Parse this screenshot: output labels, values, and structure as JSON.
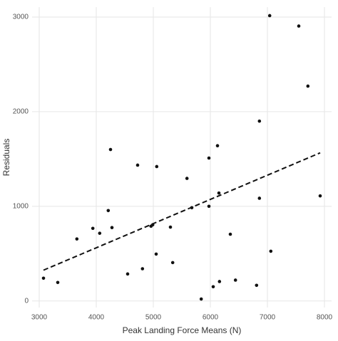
{
  "chart_data": {
    "type": "scatter",
    "x_label": "Peak Landing Force Means (N)",
    "y_label": "Residuals",
    "x": [
      3075,
      3325,
      3660,
      3940,
      4060,
      4210,
      4250,
      4275,
      4550,
      4725,
      4810,
      4990,
      4960,
      5050,
      5060,
      5300,
      5340,
      5590,
      5675,
      5840,
      5975,
      5975,
      6050,
      6125,
      6150,
      6160,
      6350,
      6440,
      6810,
      6860,
      6860,
      7040,
      7060,
      7550,
      7710,
      7925
    ],
    "values": [
      240,
      195,
      655,
      767,
      715,
      955,
      1600,
      775,
      285,
      1435,
      340,
      805,
      790,
      495,
      1420,
      780,
      405,
      1295,
      985,
      20,
      1000,
      1510,
      150,
      1640,
      1140,
      205,
      705,
      220,
      165,
      1900,
      1085,
      3015,
      525,
      2905,
      2270,
      1110
    ],
    "color": "#111111",
    "trend": {
      "x": [
        3075,
        7925
      ],
      "y": [
        325,
        1565
      ],
      "color": "#111111"
    },
    "xlim": [
      2875,
      8125
    ],
    "xticks": [
      3000,
      4000,
      5000,
      6000,
      7000,
      8000
    ],
    "ylim": [
      -70,
      3105
    ],
    "yticks": [
      0,
      1000,
      2000,
      3000
    ],
    "grid": true
  }
}
